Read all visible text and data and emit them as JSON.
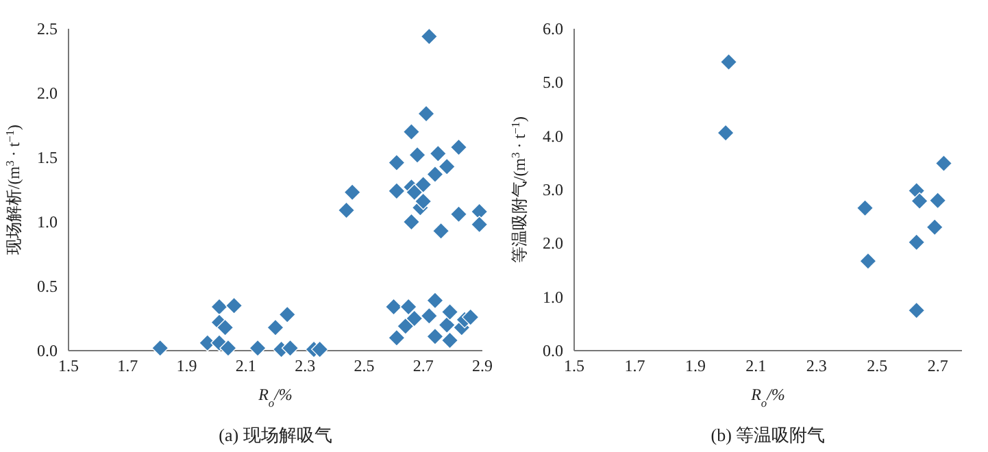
{
  "chart_data": [
    {
      "type": "scatter",
      "title": "(a) 现场解吸气",
      "xlabel": "R$_{o}$/%",
      "ylabel": "现场解析/(m$^{3}$ · t$^{−1}$)",
      "marker": "diamond",
      "xlim": [
        1.5,
        2.9
      ],
      "xticks": [
        1.5,
        1.7,
        1.9,
        2.1,
        2.3,
        2.5,
        2.7,
        2.9
      ],
      "ylim": [
        0,
        2.5
      ],
      "yticks": [
        {
          "value": 0,
          "label": "0.0"
        },
        {
          "value": 0.5,
          "label": "0.5"
        },
        {
          "value": 1,
          "label": "1.0"
        },
        {
          "value": 1.5,
          "label": "1.5"
        },
        {
          "value": 2,
          "label": "2.0"
        },
        {
          "value": 2.5,
          "label": "2.5"
        }
      ],
      "series": [
        {
          "color": "#3a7db5",
          "x": [
            1.81,
            1.97,
            2.01,
            2.01,
            2.01,
            2.03,
            2.04,
            2.06,
            2.14,
            2.2,
            2.22,
            2.24,
            2.25,
            2.33,
            2.35,
            2.44,
            2.46,
            2.6,
            2.61,
            2.61,
            2.61,
            2.64,
            2.65,
            2.66,
            2.66,
            2.66,
            2.67,
            2.67,
            2.68,
            2.69,
            2.7,
            2.7,
            2.71,
            2.72,
            2.72,
            2.74,
            2.74,
            2.74,
            2.75,
            2.76,
            2.78,
            2.78,
            2.79,
            2.79,
            2.82,
            2.82,
            2.83,
            2.84,
            2.86,
            2.89,
            2.89
          ],
          "values": [
            0.02,
            0.06,
            0.34,
            0.06,
            0.22,
            0.18,
            0.02,
            0.35,
            0.02,
            0.18,
            0.01,
            0.28,
            0.02,
            0.01,
            0.01,
            1.09,
            1.23,
            0.34,
            0.1,
            1.46,
            1.24,
            0.19,
            0.34,
            1.27,
            1.0,
            1.7,
            0.25,
            1.23,
            1.52,
            1.11,
            1.29,
            1.16,
            1.84,
            2.44,
            0.27,
            1.37,
            0.11,
            0.39,
            1.53,
            0.93,
            1.43,
            0.2,
            0.3,
            0.08,
            1.58,
            1.06,
            0.18,
            0.24,
            0.26,
            1.08,
            0.98
          ]
        }
      ]
    },
    {
      "type": "scatter",
      "title": "(b) 等温吸附气",
      "xlabel": "R$_{o}$/%",
      "ylabel": "等温吸附气/(m$^{3}$ · t$^{−1}$)",
      "marker": "diamond",
      "xlim": [
        1.5,
        2.78
      ],
      "xticks": [
        1.5,
        1.7,
        1.9,
        2.1,
        2.3,
        2.5,
        2.7
      ],
      "ylim": [
        0,
        6
      ],
      "yticks": [
        {
          "value": 0,
          "label": "0.0"
        },
        {
          "value": 1,
          "label": "1.0"
        },
        {
          "value": 2,
          "label": "2.0"
        },
        {
          "value": 3,
          "label": "3.0"
        },
        {
          "value": 4,
          "label": "4.0"
        },
        {
          "value": 5,
          "label": "5.0"
        },
        {
          "value": 6,
          "label": "6.0"
        }
      ],
      "series": [
        {
          "color": "#3a7db5",
          "x": [
            2.01,
            2.0,
            2.46,
            2.47,
            2.63,
            2.64,
            2.63,
            2.63,
            2.69,
            2.7,
            2.72
          ],
          "values": [
            5.38,
            4.06,
            2.66,
            1.67,
            2.98,
            2.79,
            2.02,
            0.75,
            2.3,
            2.8,
            3.49
          ]
        }
      ]
    }
  ]
}
